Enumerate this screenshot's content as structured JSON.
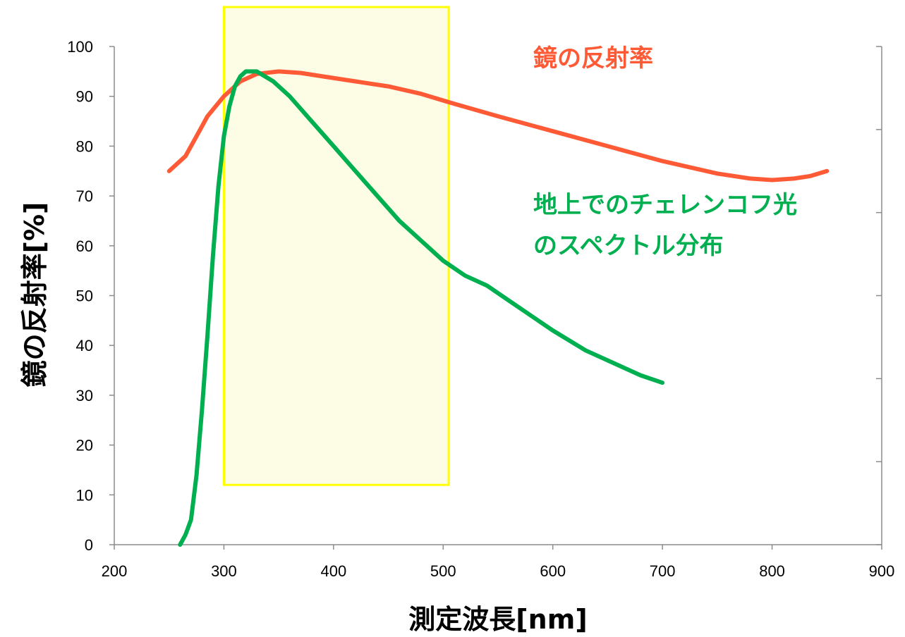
{
  "chart_data": {
    "type": "line",
    "xlabel": "測定波長[nm]",
    "ylabel": "鏡の反射率[%]",
    "xlim": [
      200,
      900
    ],
    "ylim": [
      0,
      100
    ],
    "x_ticks": [
      "200",
      "300",
      "400",
      "500",
      "600",
      "700",
      "800",
      "900"
    ],
    "y_ticks": [
      "0",
      "10",
      "20",
      "30",
      "40",
      "50",
      "60",
      "70",
      "80",
      "90",
      "100"
    ],
    "grid": false,
    "highlight_band": {
      "x_range": [
        300,
        505
      ],
      "y_range": [
        12,
        108
      ],
      "fill": "#fdfde6",
      "stroke": "#ffff00"
    },
    "series": [
      {
        "name": "鏡の反射率",
        "color": "#ff5a36",
        "points": [
          [
            250,
            75
          ],
          [
            255,
            76
          ],
          [
            265,
            78
          ],
          [
            275,
            82
          ],
          [
            285,
            86
          ],
          [
            300,
            90
          ],
          [
            315,
            93
          ],
          [
            330,
            94.5
          ],
          [
            350,
            95
          ],
          [
            370,
            94.7
          ],
          [
            390,
            94
          ],
          [
            420,
            93
          ],
          [
            450,
            92
          ],
          [
            480,
            90.5
          ],
          [
            510,
            88.5
          ],
          [
            550,
            86
          ],
          [
            600,
            83
          ],
          [
            650,
            80
          ],
          [
            700,
            77
          ],
          [
            750,
            74.5
          ],
          [
            780,
            73.5
          ],
          [
            800,
            73.2
          ],
          [
            820,
            73.5
          ],
          [
            835,
            74
          ],
          [
            850,
            75
          ]
        ]
      },
      {
        "name": "地上でのチェレンコフ光のスペクトル分布",
        "name_lines": [
          "地上でのチェレンコフ光",
          "のスペクトル分布"
        ],
        "color": "#00b050",
        "points": [
          [
            260,
            0
          ],
          [
            265,
            2
          ],
          [
            270,
            5
          ],
          [
            275,
            14
          ],
          [
            280,
            27
          ],
          [
            285,
            42
          ],
          [
            290,
            58
          ],
          [
            295,
            72
          ],
          [
            300,
            82
          ],
          [
            305,
            88
          ],
          [
            310,
            92
          ],
          [
            315,
            94
          ],
          [
            320,
            95
          ],
          [
            330,
            95
          ],
          [
            345,
            93
          ],
          [
            360,
            90
          ],
          [
            380,
            85
          ],
          [
            400,
            80
          ],
          [
            420,
            75
          ],
          [
            440,
            70
          ],
          [
            460,
            65
          ],
          [
            480,
            61
          ],
          [
            500,
            57
          ],
          [
            520,
            54
          ],
          [
            540,
            52
          ],
          [
            560,
            49
          ],
          [
            580,
            46
          ],
          [
            600,
            43
          ],
          [
            630,
            39
          ],
          [
            660,
            36
          ],
          [
            680,
            34
          ],
          [
            700,
            32.5
          ]
        ]
      }
    ],
    "legend": "inline"
  }
}
